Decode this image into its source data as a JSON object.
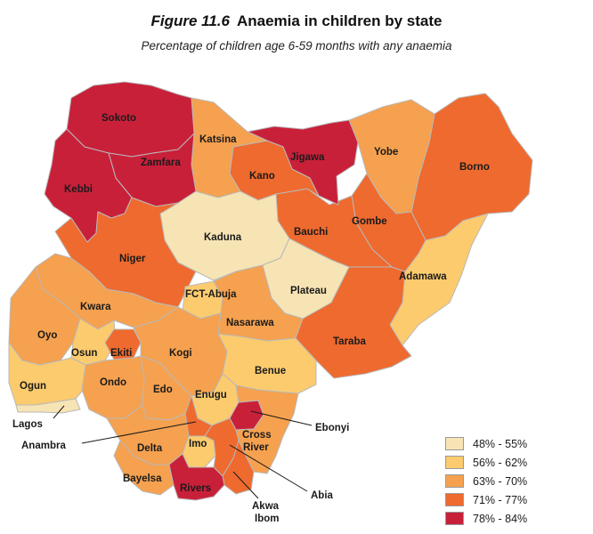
{
  "header": {
    "figure_label": "Figure 11.6",
    "title": "Anaemia in children by state",
    "subtitle": "Percentage of children age 6-59 months with any anaemia"
  },
  "legend": [
    {
      "label": "48% - 55%",
      "color": "#f7e4b4"
    },
    {
      "label": "56% - 62%",
      "color": "#fbcb6e"
    },
    {
      "label": "63% - 70%",
      "color": "#f5a14f"
    },
    {
      "label": "71% - 77%",
      "color": "#ef6a2e"
    },
    {
      "label": "78% - 84%",
      "color": "#c9203a"
    }
  ],
  "states": {
    "sokoto": {
      "name": "Sokoto",
      "band": 4
    },
    "zamfara": {
      "name": "Zamfara",
      "band": 4
    },
    "kebbi": {
      "name": "Kebbi",
      "band": 4
    },
    "katsina": {
      "name": "Katsina",
      "band": 2
    },
    "jigawa": {
      "name": "Jigawa",
      "band": 4
    },
    "kano": {
      "name": "Kano",
      "band": 3
    },
    "yobe": {
      "name": "Yobe",
      "band": 2
    },
    "borno": {
      "name": "Borno",
      "band": 3
    },
    "kaduna": {
      "name": "Kaduna",
      "band": 0
    },
    "bauchi": {
      "name": "Bauchi",
      "band": 3
    },
    "gombe": {
      "name": "Gombe",
      "band": 3
    },
    "niger": {
      "name": "Niger",
      "band": 3
    },
    "adamawa": {
      "name": "Adamawa",
      "band": 1
    },
    "fct": {
      "name": "FCT-Abuja",
      "band": 1
    },
    "plateau": {
      "name": "Plateau",
      "band": 0
    },
    "kwara": {
      "name": "Kwara",
      "band": 2
    },
    "nasarawa": {
      "name": "Nasarawa",
      "band": 2
    },
    "oyo": {
      "name": "Oyo",
      "band": 2
    },
    "osun": {
      "name": "Osun",
      "band": 1
    },
    "ekiti": {
      "name": "Ekiti",
      "band": 3
    },
    "kogi": {
      "name": "Kogi",
      "band": 2
    },
    "taraba": {
      "name": "Taraba",
      "band": 3
    },
    "benue": {
      "name": "Benue",
      "band": 1
    },
    "ogun": {
      "name": "Ogun",
      "band": 1
    },
    "ondo": {
      "name": "Ondo",
      "band": 2
    },
    "edo": {
      "name": "Edo",
      "band": 2
    },
    "enugu": {
      "name": "Enugu",
      "band": 1
    },
    "lagos": {
      "name": "Lagos",
      "band": 0
    },
    "anambra": {
      "name": "Anambra",
      "band": 3
    },
    "ebonyi": {
      "name": "Ebonyi",
      "band": 4
    },
    "delta": {
      "name": "Delta",
      "band": 2
    },
    "imo": {
      "name": "Imo",
      "band": 1
    },
    "cross_river": {
      "name": "Cross River",
      "band": 2
    },
    "bayelsa": {
      "name": "Bayelsa",
      "band": 2
    },
    "rivers": {
      "name": "Rivers",
      "band": 4
    },
    "abia": {
      "name": "Abia",
      "band": 3
    },
    "akwa_ibom": {
      "name": "Akwa Ibom",
      "band": 3
    }
  }
}
